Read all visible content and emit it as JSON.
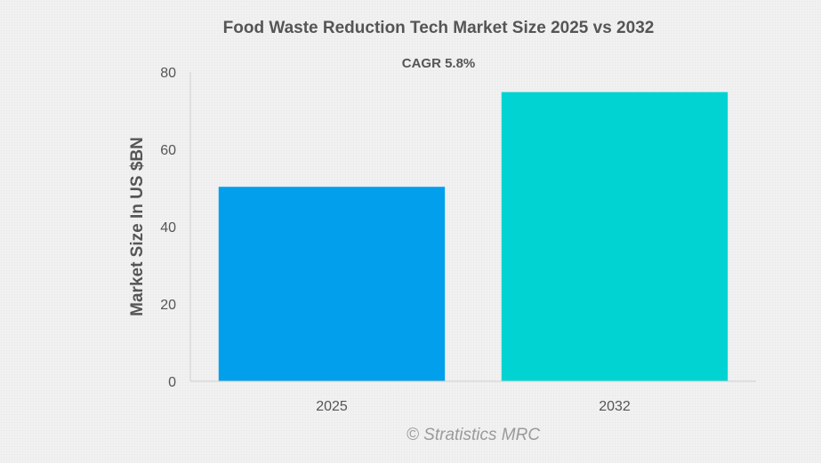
{
  "chart_data": {
    "type": "bar",
    "title": "Food Waste Reduction Tech Market Size 2025 vs 2032",
    "subtitle": "CAGR 5.8%",
    "categories": [
      "2025",
      "2032"
    ],
    "values": [
      50.3,
      74.8
    ],
    "xlabel": "",
    "ylabel": "Market Size In US $BN",
    "ylim": [
      0,
      80
    ],
    "yticks": [
      0,
      20,
      40,
      60,
      80
    ],
    "grid": false,
    "legend": "none",
    "colors": [
      "#029fec",
      "#00d3d2"
    ]
  },
  "watermark": "© Stratistics MRC"
}
